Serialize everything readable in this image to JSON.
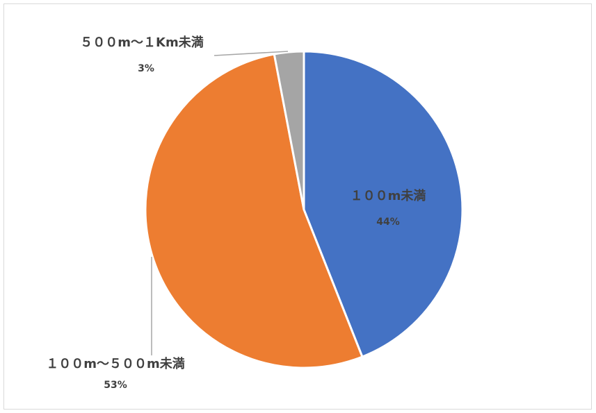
{
  "chart_data": {
    "type": "pie",
    "categories": [
      "１００m未満",
      "１００m～５００m未満",
      "５００m～１Km未満"
    ],
    "values": [
      44,
      53,
      3
    ],
    "value_labels": [
      "44%",
      "53%",
      "3%"
    ],
    "colors": [
      "#4472c4",
      "#ed7d31",
      "#a5a5a5"
    ],
    "label_text_color": "#404040",
    "leader_line_color": "#a6a6a6",
    "title": "",
    "legend": "none"
  }
}
